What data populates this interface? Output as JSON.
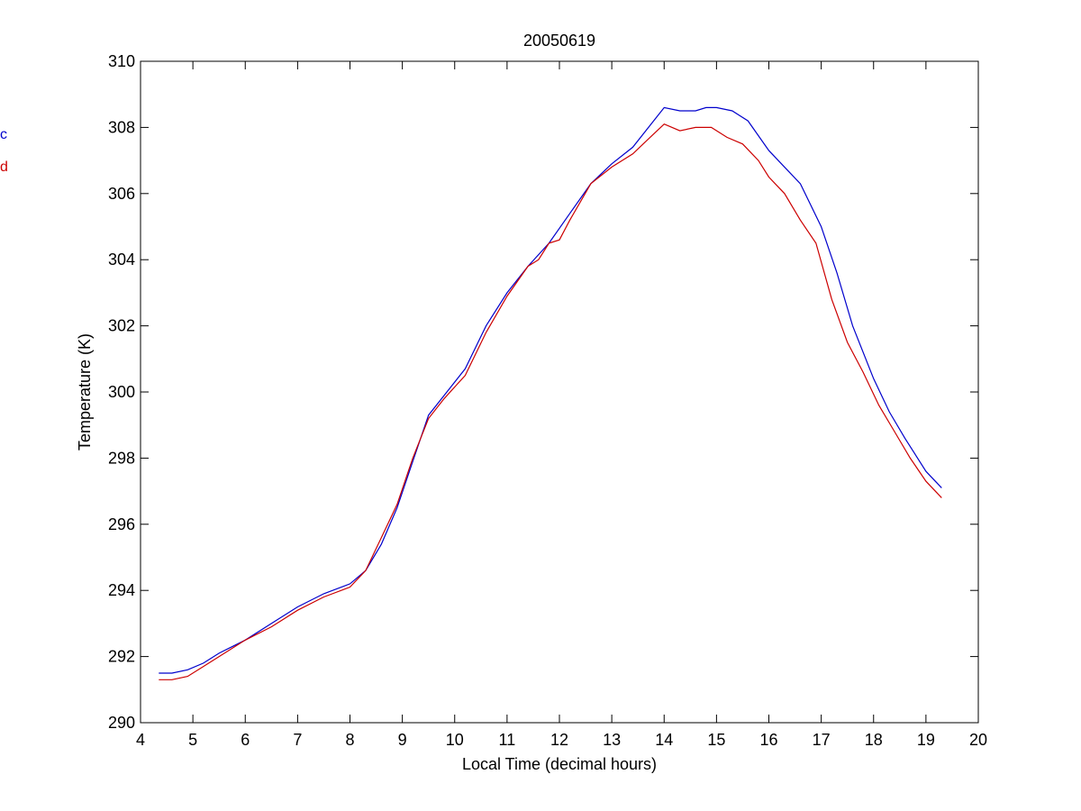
{
  "chart_data": {
    "type": "line",
    "title": "20050619",
    "xlabel": "Local Time (decimal hours)",
    "ylabel": "Temperature (K)",
    "xlim": [
      4,
      20
    ],
    "ylim": [
      290,
      310
    ],
    "xticks": [
      4,
      5,
      6,
      7,
      8,
      9,
      10,
      11,
      12,
      13,
      14,
      15,
      16,
      17,
      18,
      19,
      20
    ],
    "yticks": [
      290,
      292,
      294,
      296,
      298,
      300,
      302,
      304,
      306,
      308,
      310
    ],
    "grid": false,
    "legend_placement": "left, outside plot (clipped)",
    "series": [
      {
        "name": "c",
        "color": "#0000cc",
        "x": [
          4.35,
          4.6,
          4.9,
          5.2,
          5.5,
          6.0,
          6.5,
          7.0,
          7.5,
          8.0,
          8.3,
          8.6,
          8.9,
          9.2,
          9.5,
          9.8,
          10.2,
          10.6,
          11.0,
          11.4,
          11.8,
          12.2,
          12.6,
          13.0,
          13.4,
          13.8,
          14.0,
          14.3,
          14.6,
          14.8,
          15.0,
          15.3,
          15.6,
          16.0,
          16.3,
          16.6,
          17.0,
          17.3,
          17.6,
          18.0,
          18.3,
          18.6,
          19.0,
          19.3
        ],
        "y": [
          291.5,
          291.5,
          291.6,
          291.8,
          292.1,
          292.5,
          293.0,
          293.5,
          293.9,
          294.2,
          294.6,
          295.4,
          296.5,
          297.9,
          299.3,
          299.9,
          300.7,
          302.0,
          303.0,
          303.8,
          304.5,
          305.4,
          306.3,
          306.9,
          307.4,
          308.2,
          308.6,
          308.5,
          308.5,
          308.6,
          308.6,
          308.5,
          308.2,
          307.3,
          306.8,
          306.3,
          305.0,
          303.6,
          302.0,
          300.4,
          299.4,
          298.6,
          297.6,
          297.1
        ]
      },
      {
        "name": "d",
        "color": "#cc0000",
        "x": [
          4.35,
          4.6,
          4.9,
          5.2,
          5.5,
          6.0,
          6.5,
          7.0,
          7.5,
          8.0,
          8.3,
          8.6,
          8.9,
          9.2,
          9.5,
          9.8,
          10.2,
          10.6,
          11.0,
          11.4,
          11.6,
          11.8,
          12.0,
          12.2,
          12.6,
          13.0,
          13.4,
          13.8,
          14.0,
          14.3,
          14.6,
          14.9,
          15.2,
          15.5,
          15.8,
          16.0,
          16.3,
          16.6,
          16.9,
          17.2,
          17.5,
          17.8,
          18.1,
          18.4,
          18.7,
          19.0,
          19.3
        ],
        "y": [
          291.3,
          291.3,
          291.4,
          291.7,
          292.0,
          292.5,
          292.9,
          293.4,
          293.8,
          294.1,
          294.6,
          295.6,
          296.6,
          298.0,
          299.2,
          299.8,
          300.5,
          301.8,
          302.9,
          303.8,
          304.0,
          304.5,
          304.6,
          305.2,
          306.3,
          306.8,
          307.2,
          307.8,
          308.1,
          307.9,
          308.0,
          308.0,
          307.7,
          307.5,
          307.0,
          306.5,
          306.0,
          305.2,
          304.5,
          302.8,
          301.5,
          300.6,
          299.6,
          298.8,
          298.0,
          297.3,
          296.8
        ]
      }
    ]
  }
}
